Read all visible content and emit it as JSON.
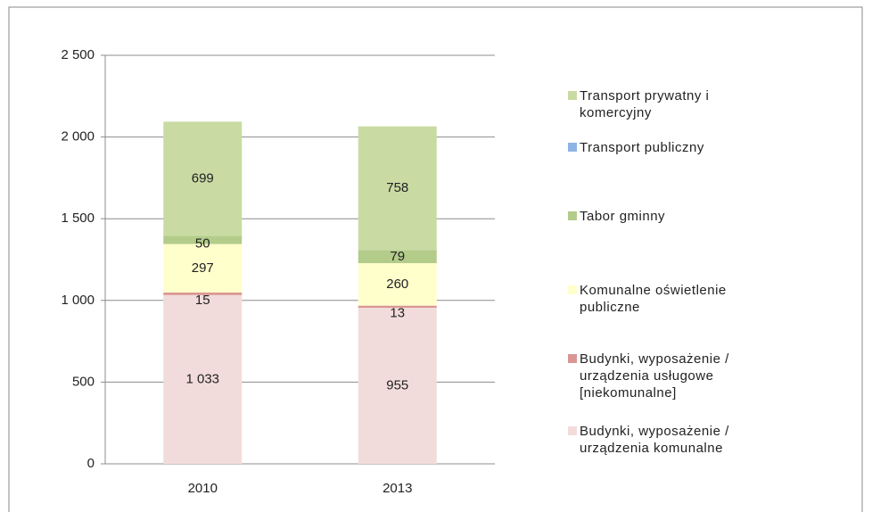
{
  "chart_data": {
    "type": "stacked_bar",
    "categories": [
      "2010",
      "2013"
    ],
    "series": [
      {
        "name": "Budynki, wyposażenie / urządzenia komunalne",
        "color": "#f2dcdb",
        "values": [
          1033,
          955
        ],
        "value_labels": [
          "1 033",
          "955"
        ]
      },
      {
        "name": "Budynki, wyposażenie / urządzenia usługowe [niekomunalne]",
        "color": "#d99694",
        "values": [
          15,
          13
        ],
        "value_labels": [
          "15",
          "13"
        ]
      },
      {
        "name": "Komunalne oświetlenie publiczne",
        "color": "#ffffcc",
        "values": [
          297,
          260
        ],
        "value_labels": [
          "297",
          "260"
        ]
      },
      {
        "name": "Tabor gminny",
        "color": "#b3cc8a",
        "values": [
          50,
          79
        ],
        "value_labels": [
          "50",
          "79"
        ]
      },
      {
        "name": "Transport publiczny",
        "color": "#8eb4e3",
        "values": [
          0,
          0
        ]
      },
      {
        "name": "Transport prywatny i komercyjny",
        "color": "#c9dba3",
        "values": [
          699,
          758
        ],
        "value_labels": [
          "699",
          "758"
        ]
      }
    ],
    "ylim": [
      0,
      2500
    ],
    "yticks": [
      0,
      500,
      {
        "value": 1000,
        "label": "1 000"
      },
      {
        "value": 1500,
        "label": "1 500"
      },
      {
        "value": 2000,
        "label": "2 000"
      },
      {
        "value": 2500,
        "label": "2 500"
      }
    ],
    "grid": true
  }
}
